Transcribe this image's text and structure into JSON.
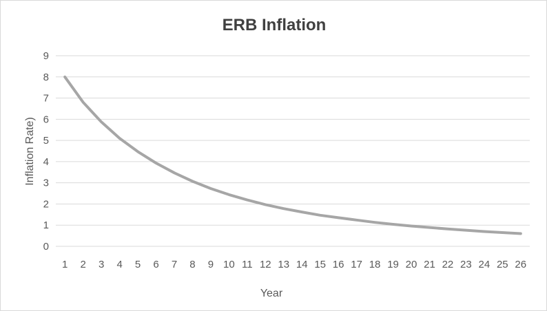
{
  "chart_data": {
    "type": "line",
    "title": "ERB Inflation",
    "xlabel": "Year",
    "ylabel": "Inflation Rate)",
    "ylim": [
      0,
      9
    ],
    "yticks": [
      0,
      1,
      2,
      3,
      4,
      5,
      6,
      7,
      8,
      9
    ],
    "grid": true,
    "legend": "none",
    "x": [
      1,
      2,
      3,
      4,
      5,
      6,
      7,
      8,
      9,
      10,
      11,
      12,
      13,
      14,
      15,
      16,
      17,
      18,
      19,
      20,
      21,
      22,
      23,
      24,
      25,
      26
    ],
    "series": [
      {
        "color": "#a6a6a6",
        "values": [
          8.0,
          6.8,
          5.87,
          5.1,
          4.47,
          3.93,
          3.47,
          3.07,
          2.73,
          2.44,
          2.19,
          1.97,
          1.78,
          1.62,
          1.47,
          1.35,
          1.24,
          1.13,
          1.04,
          0.96,
          0.89,
          0.82,
          0.76,
          0.7,
          0.65,
          0.6
        ]
      }
    ]
  }
}
